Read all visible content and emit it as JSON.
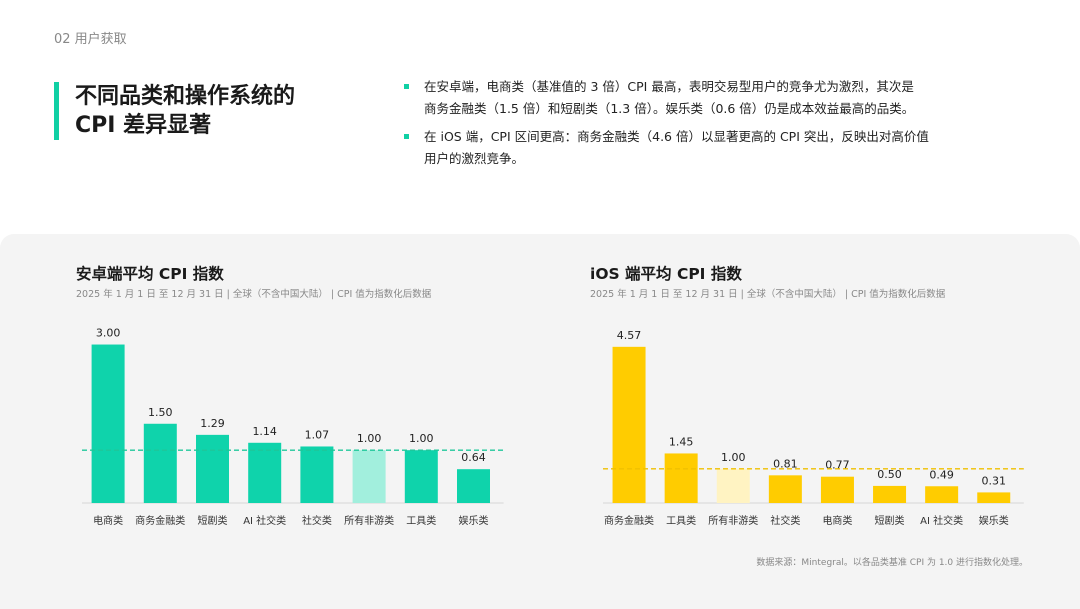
{
  "header": {
    "section_label": "02   用户获取"
  },
  "title": {
    "line1": "不同品类和操作系统的",
    "line2": "CPI 差异显著"
  },
  "bullets": [
    {
      "line1": "在安卓端，电商类（基准值的 3 倍）CPI 最高，表明交易型用户的竞争尤为激烈，其次是",
      "line2": "商务金融类（1.5 倍）和短剧类（1.3 倍）。娱乐类（0.6 倍）仍是成本效益最高的品类。"
    },
    {
      "line1": "在 iOS 端，CPI 区间更高：商务金融类（4.6 倍）以显著更高的 CPI 突出，反映出对高价值",
      "line2": "用户的激烈竞争。"
    }
  ],
  "colors": {
    "accent": "#10d0a4",
    "android_bar": "#0fd3ab",
    "android_highlight": "#a2efdd",
    "ios_bar": "#ffcc00",
    "ios_highlight": "#fff3c2"
  },
  "chart_data": [
    {
      "type": "bar",
      "title": "安卓端平均 CPI 指数",
      "subtitle": "2025 年 1 月 1 日 至 12 月 31 日 | 全球（不含中国大陆） | CPI 值为指数化后数据",
      "categories": [
        "电商类",
        "商务金融类",
        "短剧类",
        "AI 社交类",
        "社交类",
        "所有非游类",
        "工具类",
        "娱乐类"
      ],
      "values": [
        3.0,
        1.5,
        1.29,
        1.14,
        1.07,
        1.0,
        1.0,
        0.64
      ],
      "labels": [
        "3.00",
        "1.50",
        "1.29",
        "1.14",
        "1.07",
        "1.00",
        "1.00",
        "0.64"
      ],
      "highlight_index": 5,
      "reference_line": 1.0,
      "ylim": [
        0,
        3.4
      ],
      "grid": false
    },
    {
      "type": "bar",
      "title": "iOS 端平均 CPI 指数",
      "subtitle": "2025 年 1 月 1 日 至 12 月 31 日 | 全球（不含中国大陆） | CPI 值为指数化后数据",
      "categories": [
        "商务金融类",
        "工具类",
        "所有非游类",
        "社交类",
        "电商类",
        "短剧类",
        "AI 社交类",
        "娱乐类"
      ],
      "values": [
        4.57,
        1.45,
        1.0,
        0.81,
        0.77,
        0.5,
        0.49,
        0.31
      ],
      "labels": [
        "4.57",
        "1.45",
        "1.00",
        "0.81",
        "0.77",
        "0.50",
        "0.49",
        "0.31"
      ],
      "highlight_index": 2,
      "reference_line": 1.0,
      "ylim": [
        0,
        5.2
      ],
      "grid": false
    }
  ],
  "source": "数据来源：Mintegral。以各品类基准 CPI 为 1.0 进行指数化处理。"
}
